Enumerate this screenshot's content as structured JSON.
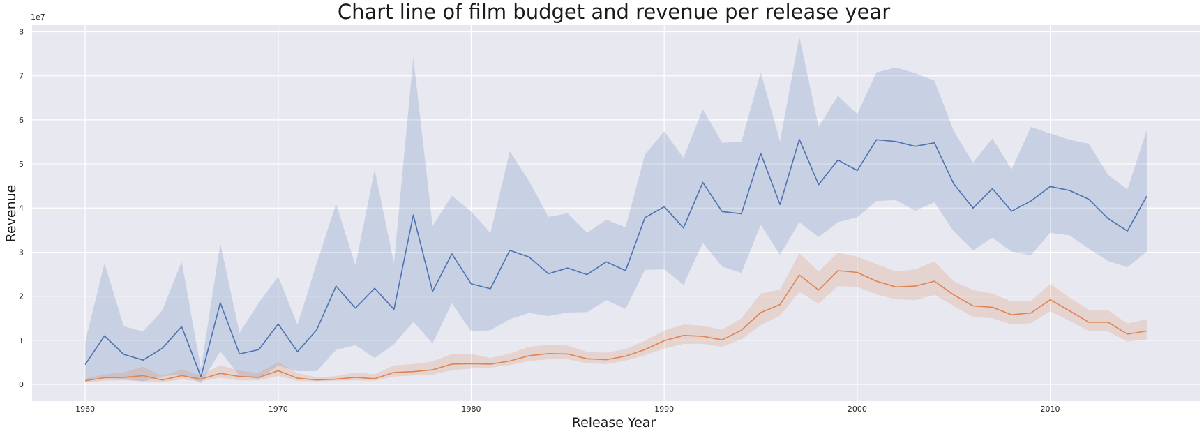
{
  "chart_data": {
    "type": "line",
    "title": "Chart line of film budget and revenue per release year",
    "xlabel": "Release Year",
    "ylabel": "Revenue",
    "y_offset_label": "1e7",
    "xlim": [
      1957.25,
      2017.75
    ],
    "ylim": [
      -3800000,
      81500000
    ],
    "x_ticks": [
      1960,
      1970,
      1980,
      1990,
      2000,
      2010
    ],
    "x_tick_labels": [
      "1960",
      "1970",
      "1980",
      "1990",
      "2000",
      "2010"
    ],
    "y_ticks": [
      0,
      10000000,
      20000000,
      30000000,
      40000000,
      50000000,
      60000000,
      70000000,
      80000000
    ],
    "y_tick_labels": [
      "0",
      "1",
      "2",
      "3",
      "4",
      "5",
      "6",
      "7",
      "8"
    ],
    "grid": true,
    "legend": "none",
    "background_color": "#e8e8f0",
    "x": [
      1960,
      1961,
      1962,
      1963,
      1964,
      1965,
      1966,
      1967,
      1968,
      1969,
      1970,
      1971,
      1972,
      1973,
      1974,
      1975,
      1976,
      1977,
      1978,
      1979,
      1980,
      1981,
      1982,
      1983,
      1984,
      1985,
      1986,
      1987,
      1988,
      1989,
      1990,
      1991,
      1992,
      1993,
      1994,
      1995,
      1996,
      1997,
      1998,
      1999,
      2000,
      2001,
      2002,
      2003,
      2004,
      2005,
      2006,
      2007,
      2008,
      2009,
      2010,
      2011,
      2012,
      2013,
      2014,
      2015
    ],
    "series": [
      {
        "color": "#4c72b0",
        "values": [
          4500000,
          11000000,
          6800000,
          5500000,
          8200000,
          13100000,
          1700000,
          18500000,
          6900000,
          7900000,
          13700000,
          7400000,
          12400000,
          22300000,
          17300000,
          21800000,
          17000000,
          38400000,
          21100000,
          29600000,
          22800000,
          21700000,
          30400000,
          28900000,
          25100000,
          26400000,
          24900000,
          27800000,
          25800000,
          37800000,
          40300000,
          35500000,
          45800000,
          39200000,
          38700000,
          52400000,
          40800000,
          55600000,
          45300000,
          50900000,
          48500000,
          55500000,
          55100000,
          54000000,
          54800000,
          45500000,
          40000000,
          44400000,
          39300000,
          41600000,
          44900000,
          44000000,
          42000000,
          37600000,
          34800000,
          42700000
        ],
        "ci_lower": [
          800000,
          1500000,
          1200000,
          700000,
          1800000,
          2300000,
          300000,
          7500000,
          2000000,
          1200000,
          4300000,
          3000000,
          3000000,
          7800000,
          8900000,
          6000000,
          9100000,
          14200000,
          9300000,
          18400000,
          12000000,
          12300000,
          14800000,
          16200000,
          15500000,
          16300000,
          16400000,
          19100000,
          17100000,
          26000000,
          26100000,
          22600000,
          32100000,
          26700000,
          25300000,
          36200000,
          29400000,
          36800000,
          33400000,
          36800000,
          37900000,
          41600000,
          41800000,
          39400000,
          41300000,
          34700000,
          30400000,
          33300000,
          30100000,
          29300000,
          34400000,
          33800000,
          30800000,
          28000000,
          26600000,
          30100000
        ],
        "ci_upper": [
          9600000,
          27500000,
          13200000,
          12000000,
          16800000,
          27900000,
          3500000,
          32000000,
          11700000,
          18500000,
          24500000,
          13500000,
          27500000,
          41000000,
          27000000,
          48700000,
          27500000,
          74200000,
          35900000,
          42800000,
          39200000,
          34300000,
          52900000,
          46100000,
          38000000,
          38800000,
          34400000,
          37400000,
          35600000,
          52100000,
          57400000,
          51400000,
          62400000,
          54800000,
          55000000,
          70800000,
          55100000,
          78900000,
          58400000,
          65500000,
          61300000,
          70800000,
          71900000,
          70600000,
          68900000,
          57500000,
          50300000,
          55800000,
          48800000,
          58400000,
          56900000,
          55500000,
          54600000,
          47500000,
          44200000,
          57600000
        ]
      },
      {
        "color": "#dd8452",
        "values": [
          800000,
          1500000,
          1600000,
          2000000,
          1000000,
          2000000,
          1200000,
          2500000,
          1800000,
          1600000,
          3100000,
          1400000,
          1000000,
          1200000,
          1600000,
          1300000,
          2700000,
          2900000,
          3300000,
          4600000,
          4700000,
          4600000,
          5300000,
          6500000,
          7000000,
          6900000,
          5800000,
          5600000,
          6400000,
          7900000,
          9900000,
          11100000,
          10900000,
          10100000,
          12300000,
          16300000,
          18100000,
          24800000,
          21400000,
          25800000,
          25400000,
          23400000,
          22100000,
          22300000,
          23400000,
          20300000,
          17800000,
          17500000,
          15800000,
          16200000,
          19200000,
          16700000,
          14100000,
          14100000,
          11400000,
          12100000
        ],
        "ci_lower": [
          400000,
          800000,
          900000,
          700000,
          500000,
          1100000,
          700000,
          1500000,
          900000,
          900000,
          1900000,
          800000,
          700000,
          800000,
          900000,
          800000,
          1800000,
          2000000,
          2200000,
          3200000,
          3600000,
          3800000,
          4400000,
          5300000,
          5700000,
          5700000,
          4800000,
          4600000,
          5400000,
          6600000,
          8100000,
          9200000,
          9200000,
          8500000,
          10200000,
          13400000,
          15600000,
          21000000,
          18300000,
          22300000,
          22100000,
          20400000,
          19300000,
          19100000,
          20300000,
          17800000,
          15300000,
          15000000,
          13600000,
          13900000,
          16600000,
          14400000,
          12100000,
          12000000,
          9700000,
          10200000
        ],
        "ci_upper": [
          1300000,
          2300000,
          2700000,
          4000000,
          1900000,
          3400000,
          2000000,
          4400000,
          3100000,
          2600000,
          5100000,
          2600000,
          1600000,
          1900000,
          2700000,
          2300000,
          4300000,
          4600000,
          5200000,
          6900000,
          6900000,
          6000000,
          7000000,
          8500000,
          9000000,
          8800000,
          7400000,
          7200000,
          8000000,
          9900000,
          12200000,
          13600000,
          13300000,
          12400000,
          15000000,
          20600000,
          21500000,
          29800000,
          25600000,
          29900000,
          29000000,
          27300000,
          25600000,
          26100000,
          27900000,
          23400000,
          21400000,
          20600000,
          18800000,
          18900000,
          22800000,
          19700000,
          16900000,
          16800000,
          13800000,
          14800000
        ]
      }
    ]
  }
}
